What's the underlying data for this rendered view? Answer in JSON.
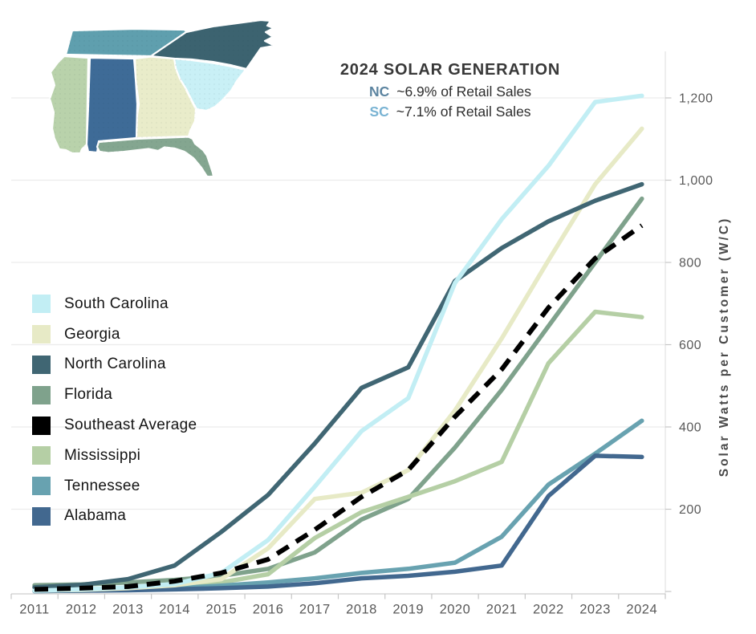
{
  "header": {
    "title": "2024 SOLAR GENERATION",
    "nc_label": "NC",
    "nc_note": "~6.9% of Retail Sales",
    "sc_label": "SC",
    "sc_note": "~7.1% of Retail Sales",
    "nc_color": "#5c84a0",
    "sc_color": "#79b3d3"
  },
  "map": {
    "description": "Southeast US states choropleth keyed to series colors",
    "states": [
      {
        "id": "tennessee",
        "name": "Tennessee",
        "color": "#5f9fae"
      },
      {
        "id": "north-carolina",
        "name": "North Carolina",
        "color": "#3c6370"
      },
      {
        "id": "south-carolina",
        "name": "South Carolina",
        "color": "#c9f0f6"
      },
      {
        "id": "georgia",
        "name": "Georgia",
        "color": "#e9ecca"
      },
      {
        "id": "alabama",
        "name": "Alabama",
        "color": "#3e6b97"
      },
      {
        "id": "mississippi",
        "name": "Mississippi",
        "color": "#b9d2ab"
      },
      {
        "id": "florida",
        "name": "Florida",
        "color": "#84a690"
      }
    ]
  },
  "chart_data": {
    "type": "line",
    "title": "2024 SOLAR GENERATION",
    "x": [
      2011,
      2012,
      2013,
      2014,
      2015,
      2016,
      2017,
      2018,
      2019,
      2020,
      2021,
      2022,
      2023,
      2024
    ],
    "ylabel": "Solar Watts per Customer (W/C)",
    "ylim": [
      0,
      1300
    ],
    "yticks": [
      200,
      400,
      600,
      800,
      1000,
      1200
    ],
    "ytick_labels": [
      "200",
      "400",
      "600",
      "800",
      "1,000",
      "1,200"
    ],
    "grid": true,
    "legend_position": "left",
    "series": [
      {
        "name": "South Carolina",
        "color": "#c2eef4",
        "values": [
          2,
          5,
          10,
          18,
          45,
          125,
          255,
          390,
          470,
          750,
          905,
          1035,
          1190,
          1205
        ]
      },
      {
        "name": "Georgia",
        "color": "#e7eac6",
        "values": [
          2,
          4,
          8,
          15,
          30,
          105,
          225,
          240,
          295,
          440,
          615,
          805,
          990,
          1125
        ]
      },
      {
        "name": "North Carolina",
        "color": "#406673",
        "values": [
          10,
          16,
          30,
          63,
          145,
          235,
          360,
          495,
          545,
          755,
          835,
          900,
          950,
          990
        ]
      },
      {
        "name": "Florida",
        "color": "#7fa28c",
        "values": [
          15,
          17,
          22,
          28,
          38,
          55,
          95,
          175,
          225,
          350,
          490,
          645,
          800,
          955
        ]
      },
      {
        "name": "Southeast Average",
        "color": "#000000",
        "dashed": true,
        "values": [
          5,
          8,
          12,
          25,
          45,
          78,
          150,
          230,
          295,
          425,
          540,
          690,
          810,
          890
        ]
      },
      {
        "name": "Mississippi",
        "color": "#b5cfa5",
        "values": [
          2,
          3,
          5,
          10,
          22,
          42,
          130,
          193,
          230,
          268,
          315,
          555,
          680,
          667
        ]
      },
      {
        "name": "Tennessee",
        "color": "#68a2b0",
        "values": [
          1,
          2,
          4,
          8,
          14,
          22,
          32,
          45,
          55,
          70,
          133,
          260,
          335,
          415
        ]
      },
      {
        "name": "Alabama",
        "color": "#42688f",
        "values": [
          1,
          2,
          3,
          5,
          8,
          12,
          20,
          32,
          38,
          48,
          63,
          232,
          330,
          327
        ]
      }
    ],
    "draw_order": [
      "Florida",
      "Mississippi",
      "Tennessee",
      "Alabama",
      "Georgia",
      "North Carolina",
      "South Carolina",
      "Southeast Average"
    ],
    "axis_style": {
      "grid_color": "#ececec",
      "axis_color": "#d6d6d6",
      "tick_color": "#c6c6c6",
      "text_color": "#595959"
    }
  }
}
